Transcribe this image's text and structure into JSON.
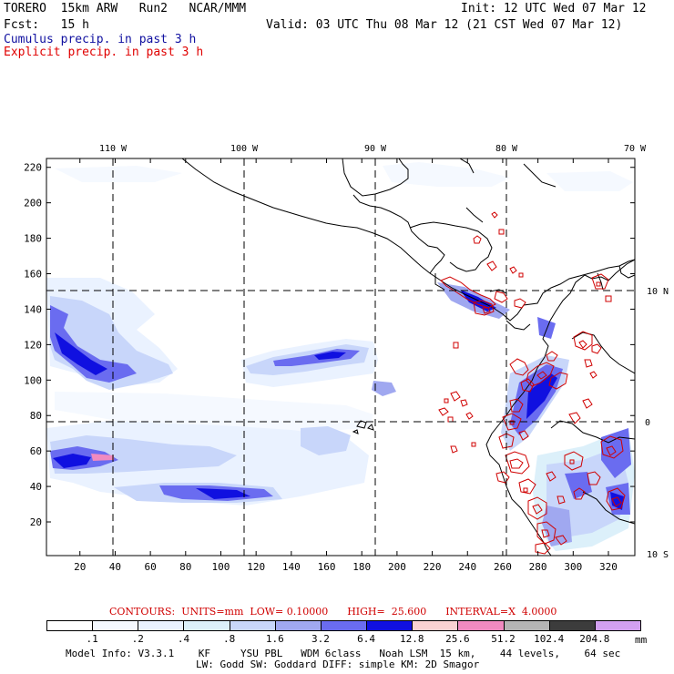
{
  "header": {
    "model": "TORERO  15km ARW   Run2   NCAR/MMM",
    "init": "Init: 12 UTC Wed 07 Mar 12",
    "fcst": "Fcst:   15 h",
    "valid": "Valid: 03 UTC Thu 08 Mar 12 (21 CST Wed 07 Mar 12)",
    "cumulus": "Cumulus precip. in past 3 h",
    "explicit": "Explicit precip. in past 3 h"
  },
  "colors": {
    "cumulus": "#1010a0",
    "explicit": "#e00000",
    "grid": "#000000",
    "coast": "#000000",
    "contour": "#d00000"
  },
  "map": {
    "lon_labels": [
      "110 W",
      "100 W",
      "90 W",
      "80 W",
      "70 W"
    ],
    "lat_labels": [
      "10 N",
      "0",
      "10 S"
    ],
    "x_ticks": [
      "20",
      "40",
      "60",
      "80",
      "100",
      "120",
      "140",
      "160",
      "180",
      "200",
      "220",
      "240",
      "260",
      "280",
      "300",
      "320"
    ],
    "y_ticks": [
      "20",
      "40",
      "60",
      "80",
      "100",
      "120",
      "140",
      "160",
      "180",
      "200",
      "220"
    ],
    "x_range": [
      1,
      335
    ],
    "y_range": [
      1,
      225
    ]
  },
  "contours_line": {
    "label": "CONTOURS:  UNITS=mm  LOW= 0.10000      HIGH=  25.600      INTERVAL=X  4.0000"
  },
  "colorbar": {
    "unit": "mm",
    "labels": [
      ".1",
      ".2",
      ".4",
      ".8",
      "1.6",
      "3.2",
      "6.4",
      "12.8",
      "25.6",
      "51.2",
      "102.4",
      "204.8"
    ],
    "colors": [
      "#ffffff",
      "#f5f9ff",
      "#eaf2ff",
      "#dcf0fa",
      "#c8d6fa",
      "#a0a8f0",
      "#6a6cf0",
      "#1010e0",
      "#fad2d2",
      "#f08ac0",
      "#b4b4b4",
      "#3c3c3c",
      "#d2a0f0"
    ]
  },
  "footer": {
    "line1": "Model Info: V3.3.1    KF     YSU PBL   WDM 6class   Noah LSM  15 km,    44 levels,    64 sec",
    "line2": "LW: Godd SW: Goddard DIFF: simple KM: 2D Smagor"
  }
}
